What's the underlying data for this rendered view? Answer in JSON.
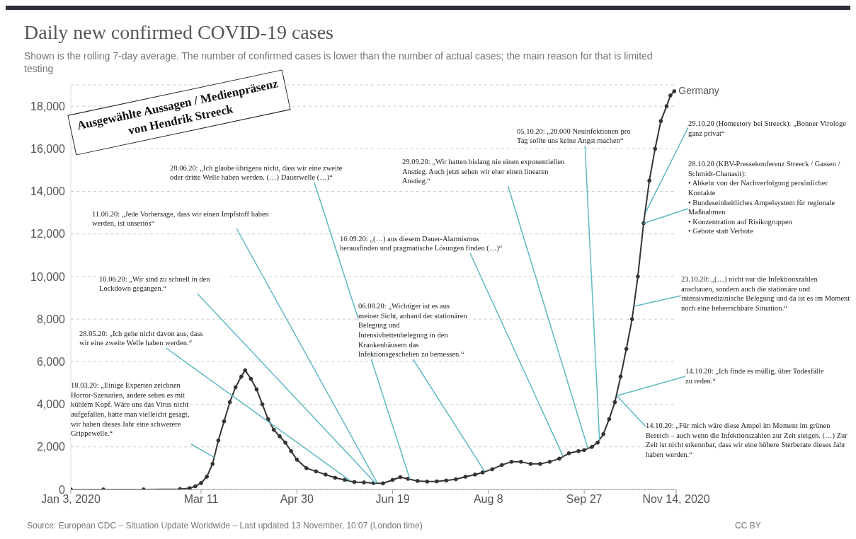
{
  "chart_data": {
    "type": "line",
    "title": "Daily new confirmed COVID-19 cases",
    "subtitle": "Shown is the rolling 7-day average. The number of confirmed cases is lower than the number of actual cases; the main reason for that is limited testing",
    "x": [
      "2020-01-03",
      "2020-01-20",
      "2020-02-10",
      "2020-02-29",
      "2020-03-05",
      "2020-03-08",
      "2020-03-11",
      "2020-03-14",
      "2020-03-17",
      "2020-03-20",
      "2020-03-23",
      "2020-03-26",
      "2020-03-29",
      "2020-04-01",
      "2020-04-03",
      "2020-04-06",
      "2020-04-09",
      "2020-04-12",
      "2020-04-15",
      "2020-04-18",
      "2020-04-21",
      "2020-04-24",
      "2020-04-27",
      "2020-04-30",
      "2020-05-05",
      "2020-05-10",
      "2020-05-15",
      "2020-05-20",
      "2020-05-25",
      "2020-05-30",
      "2020-06-04",
      "2020-06-09",
      "2020-06-14",
      "2020-06-19",
      "2020-06-23",
      "2020-06-27",
      "2020-07-02",
      "2020-07-07",
      "2020-07-12",
      "2020-07-17",
      "2020-07-22",
      "2020-07-27",
      "2020-08-01",
      "2020-08-05",
      "2020-08-10",
      "2020-08-15",
      "2020-08-20",
      "2020-08-25",
      "2020-08-30",
      "2020-09-04",
      "2020-09-09",
      "2020-09-14",
      "2020-09-19",
      "2020-09-24",
      "2020-09-27",
      "2020-10-01",
      "2020-10-04",
      "2020-10-07",
      "2020-10-10",
      "2020-10-13",
      "2020-10-16",
      "2020-10-19",
      "2020-10-22",
      "2020-10-25",
      "2020-10-28",
      "2020-10-31",
      "2020-11-03",
      "2020-11-06",
      "2020-11-09",
      "2020-11-11",
      "2020-11-13"
    ],
    "series": [
      {
        "name": "Germany",
        "color": "#333333",
        "values": [
          0,
          0,
          0,
          20,
          60,
          150,
          300,
          600,
          1200,
          2300,
          3200,
          4100,
          4800,
          5300,
          5600,
          5200,
          4700,
          4000,
          3300,
          2800,
          2500,
          2200,
          1800,
          1400,
          1000,
          850,
          700,
          550,
          450,
          350,
          330,
          300,
          290,
          450,
          580,
          500,
          400,
          370,
          380,
          420,
          480,
          600,
          700,
          800,
          950,
          1150,
          1300,
          1300,
          1200,
          1200,
          1300,
          1450,
          1700,
          1800,
          1850,
          2000,
          2200,
          2600,
          3300,
          4100,
          5300,
          6600,
          8000,
          10000,
          12500,
          14500,
          16000,
          17300,
          18000,
          18500,
          18700
        ]
      }
    ],
    "xlim": [
      "2020-01-03",
      "2020-11-14"
    ],
    "xticks": [
      {
        "value": "2020-01-03",
        "label": "Jan 3, 2020"
      },
      {
        "value": "2020-03-11",
        "label": "Mar 11"
      },
      {
        "value": "2020-04-30",
        "label": "Apr 30"
      },
      {
        "value": "2020-06-19",
        "label": "Jun 19"
      },
      {
        "value": "2020-08-08",
        "label": "Aug 8"
      },
      {
        "value": "2020-09-27",
        "label": "Sep 27"
      },
      {
        "value": "2020-11-14",
        "label": "Nov 14, 2020"
      }
    ],
    "ylim": [
      0,
      19000
    ],
    "yticks": [
      0,
      {
        "value": 2000,
        "label": "2,000"
      },
      {
        "value": 4000,
        "label": "4,000"
      },
      {
        "value": 6000,
        "label": "6,000"
      },
      {
        "value": 8000,
        "label": "8,000"
      },
      {
        "value": 10000,
        "label": "10,000"
      },
      {
        "value": 12000,
        "label": "12,000"
      },
      {
        "value": 14000,
        "label": "14,000"
      },
      {
        "value": 16000,
        "label": "16,000"
      },
      {
        "value": 18000,
        "label": "18,000"
      }
    ],
    "grid": "y",
    "marker": "circle",
    "annotations": [
      "Ausgewählte Aussagen / Medienpräsenz von Hendrik Streeck",
      "Source: European CDC – Situation Update Worldwide – Last updated 13 November, 10:07 (London time)",
      "CC BY",
      {
        "text": "18.03.20: „Einige Experten zeichnen Horror-Szenarien, andere sehen es mit kühlem Kopf. Wäre uns das Virus nicht aufgefallen, hätte man vielleicht gesagt, wir haben dieses Jahr eine schwerere Grippewelle.“",
        "x": "2020-03-18",
        "y": 1500
      },
      {
        "text": "28.05.20: „Ich gehe nicht davon aus, dass wir eine zweite Welle haben werden.“",
        "x": "2020-05-28",
        "y": 400
      },
      {
        "text": "10.06.20: „Wir sind zu schnell in den Lockdown gegangen.“",
        "x": "2020-06-10",
        "y": 300
      },
      {
        "text": "11.06.20: „Jede Vorhersage, dass wir einen Impfstoff haben werden, ist unseriös“",
        "x": "2020-06-11",
        "y": 300
      },
      {
        "text": "28.06.20: „Ich glaube übrigens nicht, dass wir eine zweite oder dritte Welle haben werden. (…) Dauerwelle (…)“",
        "x": "2020-06-28",
        "y": 480
      },
      {
        "text": "06.08.20: „Wichtiger ist es aus meiner Sicht, anhand der stationären Belegung und Intensivbettenbelegung in den Krankenhäusern das Infektionsgeschehen zu bemessen.“",
        "x": "2020-08-06",
        "y": 850
      },
      {
        "text": "16.09.20: „(…) aus diesem Dauer-Alarmismus herausfinden und pragmatische Lösungen finden (…)“",
        "x": "2020-09-16",
        "y": 1550
      },
      {
        "text": "29.09.20: „Wir hatten bislang nie einen exponentiellen Anstieg. Auch jetzt sehen wir eher einen linearen Anstieg.“",
        "x": "2020-09-29",
        "y": 1900
      },
      {
        "text": "05.10.20: „20.000 Neuinfektionen pro Tag sollte uns keine Angst machen“",
        "x": "2020-10-05",
        "y": 2300
      },
      {
        "text": "14.10.20: „Ich finde es müßig, über Todesfälle zu reden.“",
        "x": "2020-10-14",
        "y": 4400
      },
      {
        "text": "14.10.20: „Für mich wäre diese Ampel im Moment im grünen Bereich – auch wenn die Infektionszahlen zur Zeit steigen. (…) Zur Zeit ist nicht erkennbar, dass wir eine höhere Sterberate dieses Jahr haben werden.“",
        "x": "2020-10-14",
        "y": 4400
      },
      {
        "text": "23.10.20: „(…) nicht nur die Infektionszahlen anschauen, sondern auch die stationäre und intensivmedizinische Belegung und da ist es im Moment noch eine beherrschbare Situation.“",
        "x": "2020-10-23",
        "y": 8600
      },
      {
        "text": "28.10.20 (KBV-Pressekonferenz Streeck / Gassen / Schmidt-Chanasit):\n• Abkehr von der Nachverfolgung persönlicher Kontakte\n• Bundeseinheitliches Ampelsystem für regionale Maßnahmen\n• Konzentration auf Risikogruppen\n• Gebote statt Verbote",
        "x": "2020-10-28",
        "y": 12500
      },
      {
        "text": "29.10.20 (Homestory bei Streeck): „Bonner Virologe ganz privat“",
        "x": "2020-10-29",
        "y": 13000
      }
    ]
  }
}
